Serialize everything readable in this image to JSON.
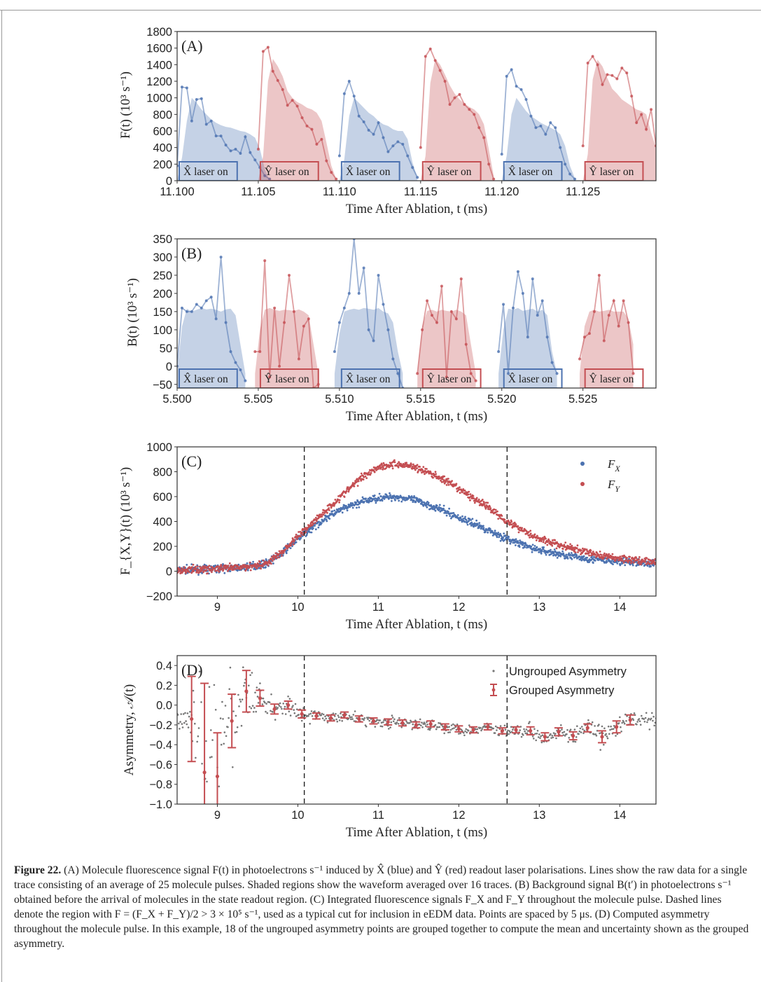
{
  "chart_data": [
    {
      "type": "area",
      "panel_label": "(A)",
      "ylabel": "F(t) (10³ s⁻¹)",
      "xlabel": "Time After Ablation, t (ms)",
      "xlim": [
        11.1,
        11.1295
      ],
      "ylim": [
        0,
        1800
      ],
      "xticks": [
        "11.100",
        "11.105",
        "11.110",
        "11.115",
        "11.120",
        "11.125"
      ],
      "xtick_values": [
        11.1,
        11.105,
        11.11,
        11.115,
        11.12,
        11.125
      ],
      "yticks": [
        0,
        200,
        400,
        600,
        800,
        1000,
        1200,
        1400,
        1600,
        1800
      ],
      "windows": [
        {
          "label": "X̂ laser on",
          "x0": 11.1,
          "x1": 11.1037,
          "color": "#4c72b0"
        },
        {
          "label": "Ŷ laser on",
          "x0": 11.105,
          "x1": 11.1087,
          "color": "#c44e52"
        },
        {
          "label": "X̂ laser on",
          "x0": 11.11,
          "x1": 11.1137,
          "color": "#4c72b0"
        },
        {
          "label": "Ŷ laser on",
          "x0": 11.115,
          "x1": 11.1187,
          "color": "#c44e52"
        },
        {
          "label": "X̂ laser on",
          "x0": 11.12,
          "x1": 11.1237,
          "color": "#4c72b0"
        },
        {
          "label": "Ŷ laser on",
          "x0": 11.125,
          "x1": 11.1287,
          "color": "#c44e52"
        }
      ],
      "series": [
        {
          "color": "#4c72b0",
          "start": 11.1,
          "dx": 0.0003,
          "shade": [
            0,
            280,
            720,
            1000,
            940,
            860,
            800,
            740,
            700,
            670,
            650,
            640,
            620,
            600,
            590,
            560,
            520,
            380,
            140,
            0
          ],
          "raw": [
            180,
            1130,
            1120,
            720,
            980,
            990,
            680,
            720,
            540,
            540,
            430,
            360,
            380,
            330,
            530,
            340,
            250,
            160,
            60,
            20
          ]
        },
        {
          "color": "#c44e52",
          "start": 11.105,
          "dx": 0.0003,
          "shade": [
            0,
            300,
            1200,
            1470,
            1380,
            1260,
            1080,
            1000,
            950,
            920,
            880,
            860,
            820,
            720,
            460,
            180,
            20
          ],
          "raw": [
            380,
            1560,
            1610,
            1320,
            1210,
            1100,
            910,
            970,
            900,
            760,
            660,
            620,
            440,
            500,
            240,
            100,
            20
          ]
        },
        {
          "color": "#4c72b0",
          "start": 11.11,
          "dx": 0.0003,
          "shade": [
            0,
            260,
            780,
            1000,
            940,
            880,
            820,
            780,
            720,
            680,
            660,
            620,
            600,
            600,
            500,
            220,
            40
          ],
          "raw": [
            300,
            1050,
            1200,
            1020,
            780,
            710,
            610,
            560,
            700,
            520,
            350,
            420,
            470,
            440,
            300,
            160,
            40
          ]
        },
        {
          "color": "#c44e52",
          "start": 11.115,
          "dx": 0.0003,
          "shade": [
            0,
            300,
            1180,
            1470,
            1400,
            1280,
            1150,
            1050,
            980,
            930,
            890,
            860,
            800,
            680,
            380,
            60
          ],
          "raw": [
            400,
            1500,
            1590,
            1450,
            1330,
            1200,
            920,
            1000,
            1040,
            920,
            860,
            800,
            640,
            520,
            200,
            20
          ]
        },
        {
          "color": "#4c72b0",
          "start": 11.12,
          "dx": 0.0003,
          "shade": [
            0,
            300,
            800,
            1000,
            920,
            840,
            780,
            740,
            700,
            670,
            640,
            610,
            560,
            420,
            180,
            30
          ],
          "raw": [
            320,
            1260,
            1340,
            1140,
            1100,
            980,
            780,
            640,
            660,
            560,
            700,
            640,
            400,
            200,
            80,
            20
          ]
        },
        {
          "color": "#c44e52",
          "start": 11.125,
          "dx": 0.0003,
          "shade": [
            0,
            320,
            1220,
            1460,
            1380,
            1240,
            1110,
            1050,
            980,
            940,
            900,
            860,
            840,
            800,
            580,
            400
          ],
          "raw": [
            420,
            1420,
            1500,
            1400,
            1160,
            1280,
            1270,
            1230,
            1360,
            1300,
            1020,
            700,
            800,
            620,
            860,
            420
          ]
        }
      ]
    },
    {
      "type": "area",
      "panel_label": "(B)",
      "ylabel": "B(t) (10³ s⁻¹)",
      "xlabel": "Time After Ablation, t (ms)",
      "xlim": [
        5.5,
        5.5295
      ],
      "ylim": [
        -60,
        350
      ],
      "xticks": [
        "5.500",
        "5.505",
        "5.510",
        "5.515",
        "5.520",
        "5.525"
      ],
      "xtick_values": [
        5.5,
        5.505,
        5.51,
        5.515,
        5.52,
        5.525
      ],
      "yticks": [
        -50,
        0,
        50,
        100,
        150,
        200,
        250,
        300,
        350
      ],
      "windows": [
        {
          "label": "X̂ laser on",
          "x0": 5.5,
          "x1": 5.5037,
          "color": "#4c72b0"
        },
        {
          "label": "Ŷ laser on",
          "x0": 5.505,
          "x1": 5.5087,
          "color": "#c44e52"
        },
        {
          "label": "X̂ laser on",
          "x0": 5.51,
          "x1": 5.5137,
          "color": "#4c72b0"
        },
        {
          "label": "Ŷ laser on",
          "x0": 5.515,
          "x1": 5.5187,
          "color": "#c44e52"
        },
        {
          "label": "X̂ laser on",
          "x0": 5.52,
          "x1": 5.5237,
          "color": "#4c72b0"
        },
        {
          "label": "Ŷ laser on",
          "x0": 5.525,
          "x1": 5.5287,
          "color": "#c44e52"
        }
      ],
      "series": [
        {
          "color": "#4c72b0",
          "start": 5.5,
          "dx": 0.0003,
          "shade": [
            -20,
            110,
            158,
            150,
            155,
            160,
            156,
            158,
            155,
            150,
            156,
            158,
            140,
            60,
            -20
          ],
          "raw": [
            0,
            160,
            150,
            150,
            170,
            160,
            180,
            190,
            130,
            300,
            120,
            40,
            10,
            -10,
            -40
          ]
        },
        {
          "color": "#c44e52",
          "start": 5.5048,
          "dx": 0.0003,
          "shade": [
            -20,
            100,
            155,
            160,
            155,
            152,
            155,
            154,
            152,
            156,
            150,
            140,
            60,
            -20
          ],
          "raw": [
            40,
            40,
            290,
            -30,
            160,
            0,
            120,
            250,
            150,
            20,
            110,
            130,
            -60,
            -50
          ]
        },
        {
          "color": "#4c72b0",
          "start": 5.5097,
          "dx": 0.0003,
          "shade": [
            -20,
            90,
            150,
            155,
            158,
            155,
            160,
            158,
            155,
            160,
            150,
            145,
            120,
            40,
            -20
          ],
          "raw": [
            40,
            120,
            160,
            200,
            350,
            200,
            270,
            100,
            70,
            250,
            170,
            100,
            20,
            -20,
            -60
          ]
        },
        {
          "color": "#c44e52",
          "start": 5.5148,
          "dx": 0.0003,
          "shade": [
            -20,
            110,
            152,
            155,
            150,
            155,
            152,
            150,
            155,
            150,
            140,
            60,
            -20
          ],
          "raw": [
            -20,
            100,
            180,
            140,
            120,
            220,
            -30,
            150,
            130,
            240,
            60,
            -20,
            -40
          ]
        },
        {
          "color": "#4c72b0",
          "start": 5.5198,
          "dx": 0.0003,
          "shade": [
            -20,
            100,
            158,
            155,
            160,
            152,
            155,
            158,
            150,
            155,
            140,
            40,
            -20
          ],
          "raw": [
            40,
            170,
            -20,
            160,
            260,
            200,
            80,
            240,
            140,
            180,
            80,
            10,
            -20
          ]
        },
        {
          "color": "#c44e52",
          "start": 5.5248,
          "dx": 0.0003,
          "shade": [
            -20,
            110,
            150,
            155,
            150,
            152,
            155,
            150,
            150,
            150,
            130,
            60
          ],
          "raw": [
            20,
            80,
            90,
            150,
            250,
            70,
            140,
            180,
            110,
            180,
            120,
            -20
          ]
        }
      ]
    },
    {
      "type": "scatter",
      "panel_label": "(C)",
      "ylabel": "F_{X,Y}(t) (10³ s⁻¹)",
      "xlabel": "Time After Ablation, t (ms)",
      "xlim": [
        8.5,
        14.45
      ],
      "ylim": [
        -200,
        1000
      ],
      "xticks": [
        9,
        10,
        11,
        12,
        13,
        14
      ],
      "yticks": [
        -200,
        0,
        200,
        400,
        600,
        800,
        1000
      ],
      "cut_lines": [
        10.08,
        12.6
      ],
      "legend_position": "top-right",
      "series": [
        {
          "name": "F_X",
          "color": "#4c72b0",
          "x": [
            8.5,
            8.8,
            9.0,
            9.3,
            9.6,
            9.8,
            10.0,
            10.2,
            10.4,
            10.6,
            10.8,
            11.0,
            11.2,
            11.4,
            11.6,
            11.8,
            12.0,
            12.2,
            12.4,
            12.6,
            12.8,
            13.0,
            13.3,
            13.6,
            13.9,
            14.2,
            14.45
          ],
          "y": [
            10,
            15,
            20,
            30,
            60,
            140,
            260,
            360,
            450,
            510,
            560,
            590,
            600,
            580,
            540,
            490,
            430,
            380,
            320,
            260,
            210,
            170,
            130,
            100,
            80,
            70,
            60
          ]
        },
        {
          "name": "F_Y",
          "color": "#c44e52",
          "x": [
            8.5,
            8.8,
            9.0,
            9.3,
            9.6,
            9.8,
            10.0,
            10.2,
            10.4,
            10.6,
            10.8,
            11.0,
            11.2,
            11.4,
            11.6,
            11.8,
            12.0,
            12.2,
            12.4,
            12.6,
            12.8,
            13.0,
            13.3,
            13.6,
            13.9,
            14.2,
            14.45
          ],
          "y": [
            10,
            15,
            20,
            30,
            60,
            150,
            280,
            400,
            520,
            640,
            760,
            840,
            860,
            850,
            800,
            740,
            660,
            580,
            500,
            400,
            330,
            260,
            200,
            150,
            110,
            90,
            70
          ]
        }
      ]
    },
    {
      "type": "scatter",
      "panel_label": "(D)",
      "ylabel": "Asymmetry, 𝒜(t)",
      "xlabel": "Time After Ablation, t (ms)",
      "xlim": [
        8.5,
        14.45
      ],
      "ylim": [
        -1.0,
        0.5
      ],
      "xticks": [
        9,
        10,
        11,
        12,
        13,
        14
      ],
      "yticks": [
        "0.4",
        "0.2",
        "0.0",
        "−0.2",
        "−0.4",
        "−0.6",
        "−0.8",
        "−1.0"
      ],
      "ytick_values": [
        0.4,
        0.2,
        0.0,
        -0.2,
        -0.4,
        -0.6,
        -0.8,
        -1.0
      ],
      "cut_lines": [
        10.08,
        12.6
      ],
      "legend_position": "top-right",
      "legend": [
        "Ungrouped Asymmetry",
        "Grouped Asymmetry"
      ],
      "grouped": {
        "color": "#c44e52",
        "x": [
          8.68,
          8.84,
          9.0,
          9.18,
          9.36,
          9.53,
          9.71,
          9.88,
          10.05,
          10.23,
          10.41,
          10.58,
          10.76,
          10.94,
          11.12,
          11.3,
          11.47,
          11.65,
          11.83,
          12.0,
          12.18,
          12.36,
          12.54,
          12.71,
          12.89,
          13.07,
          13.24,
          13.42,
          13.6,
          13.78,
          13.96,
          14.13
        ],
        "y": [
          -0.14,
          -0.68,
          -0.72,
          -0.16,
          0.14,
          0.07,
          -0.04,
          0.0,
          -0.09,
          -0.11,
          -0.13,
          -0.1,
          -0.14,
          -0.16,
          -0.17,
          -0.18,
          -0.2,
          -0.19,
          -0.22,
          -0.24,
          -0.25,
          -0.22,
          -0.26,
          -0.25,
          -0.26,
          -0.32,
          -0.27,
          -0.31,
          -0.23,
          -0.32,
          -0.22,
          -0.15
        ],
        "err": [
          0.43,
          0.9,
          0.44,
          0.27,
          0.21,
          0.08,
          0.05,
          0.04,
          0.04,
          0.03,
          0.03,
          0.03,
          0.03,
          0.03,
          0.03,
          0.03,
          0.03,
          0.03,
          0.03,
          0.03,
          0.03,
          0.03,
          0.03,
          0.03,
          0.04,
          0.04,
          0.04,
          0.04,
          0.04,
          0.06,
          0.06,
          0.05
        ]
      }
    }
  ],
  "caption": {
    "figure_label": "Figure 22.",
    "text": " (A) Molecule fluorescence signal F(t) in photoelectrons s⁻¹ induced by X̂ (blue) and Ŷ (red) readout laser polarisations. Lines show the raw data for a single trace consisting of an average of 25 molecule pulses. Shaded regions show the waveform averaged over 16 traces. (B) Background signal B(t′) in photoelectrons s⁻¹ obtained before the arrival of molecules in the state readout region. (C) Integrated fluorescence signals F_X and F_Y throughout the molecule pulse. Dashed lines denote the region with F = (F_X + F_Y)/2 > 3 × 10⁵ s⁻¹, used as a typical cut for inclusion in eEDM data. Points are spaced by 5 μs. (D) Computed asymmetry throughout the molecule pulse. In this example, 18 of the ungrouped asymmetry points are grouped together to compute the mean and uncertainty shown as the grouped asymmetry."
  }
}
